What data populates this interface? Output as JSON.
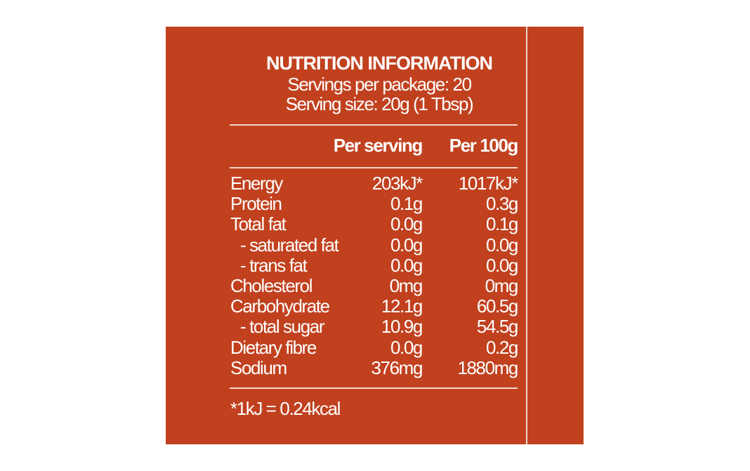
{
  "header": {
    "title": "NUTRITION INFORMATION",
    "servings": "Servings per package: 20",
    "serving_size": "Serving size: 20g (1 Tbsp)"
  },
  "table": {
    "columns": [
      "Per serving",
      "Per 100g"
    ],
    "rows": [
      [
        "Energy",
        "203kJ*",
        "1017kJ*"
      ],
      [
        "Protein",
        "0.1g",
        "0.3g"
      ],
      [
        "Total fat",
        "0.0g",
        "0.1g"
      ],
      [
        "- saturated fat",
        "0.0g",
        "0.0g"
      ],
      [
        "- trans fat",
        "0.0g",
        "0.0g"
      ],
      [
        "Cholesterol",
        "0mg",
        "0mg"
      ],
      [
        "Carbohydrate",
        "12.1g",
        "60.5g"
      ],
      [
        "- total sugar",
        "10.9g",
        "54.5g"
      ],
      [
        "Dietary fibre",
        "0.0g",
        "0.2g"
      ],
      [
        "Sodium",
        "376mg",
        "1880mg"
      ]
    ]
  },
  "footnote": "*1kJ = 0.24kcal"
}
